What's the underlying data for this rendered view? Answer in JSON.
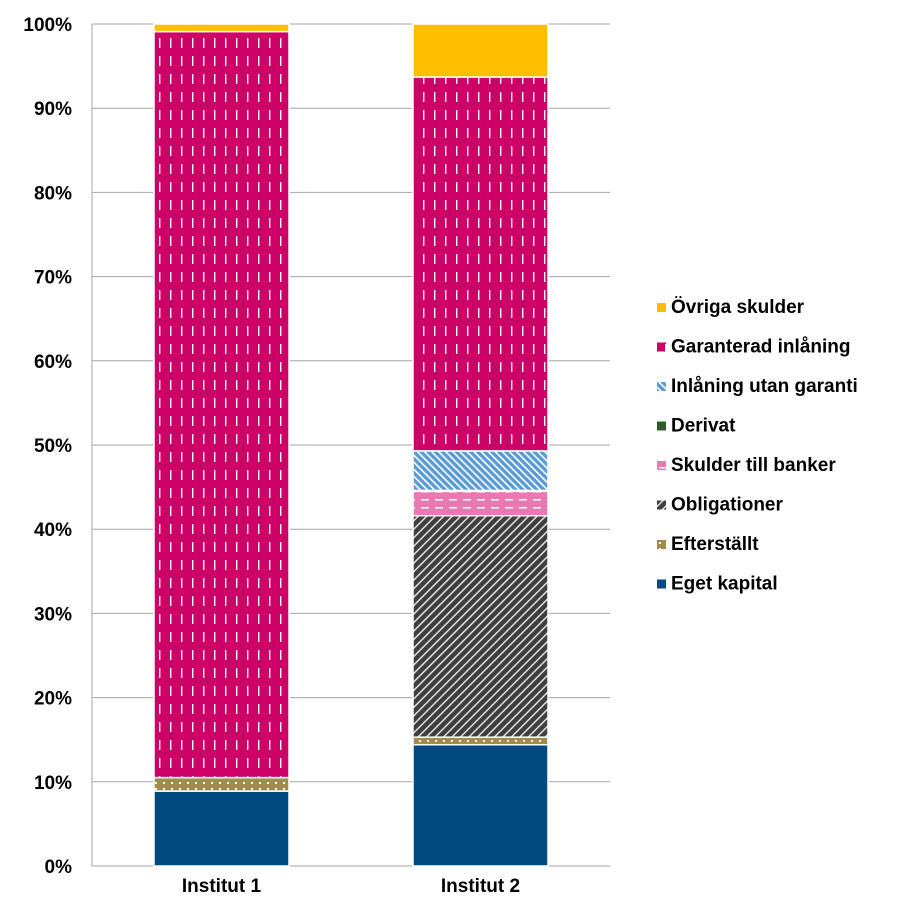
{
  "chart_data": {
    "type": "bar",
    "stacked": true,
    "percent": true,
    "categories": [
      "Institut 1",
      "Institut 2"
    ],
    "ylim": [
      0,
      100
    ],
    "yticks": [
      "0%",
      "10%",
      "20%",
      "30%",
      "40%",
      "50%",
      "60%",
      "70%",
      "80%",
      "90%",
      "100%"
    ],
    "grid": true,
    "legend_position": "right",
    "series": [
      {
        "name": "Eget kapital",
        "values": [
          8.9,
          14.4
        ],
        "color": "#004A80"
      },
      {
        "name": "Efterställt",
        "values": [
          1.6,
          0.9
        ],
        "color": "#A38A4E"
      },
      {
        "name": "Obligationer",
        "values": [
          0,
          26.3
        ],
        "color": "#3F3F3F"
      },
      {
        "name": "Skulder till banker",
        "values": [
          0,
          2.9
        ],
        "color": "#E879B2"
      },
      {
        "name": "Derivat",
        "values": [
          0,
          0.1
        ],
        "color": "#2F5A2A"
      },
      {
        "name": "Inlåning utan garanti",
        "values": [
          0,
          4.7
        ],
        "color": "#5B9BD5"
      },
      {
        "name": "Garanterad inlåning",
        "values": [
          88.6,
          44.4
        ],
        "color": "#CC0066"
      },
      {
        "name": "Övriga skulder",
        "values": [
          0.9,
          6.3
        ],
        "color": "#FFBE00"
      }
    ]
  }
}
